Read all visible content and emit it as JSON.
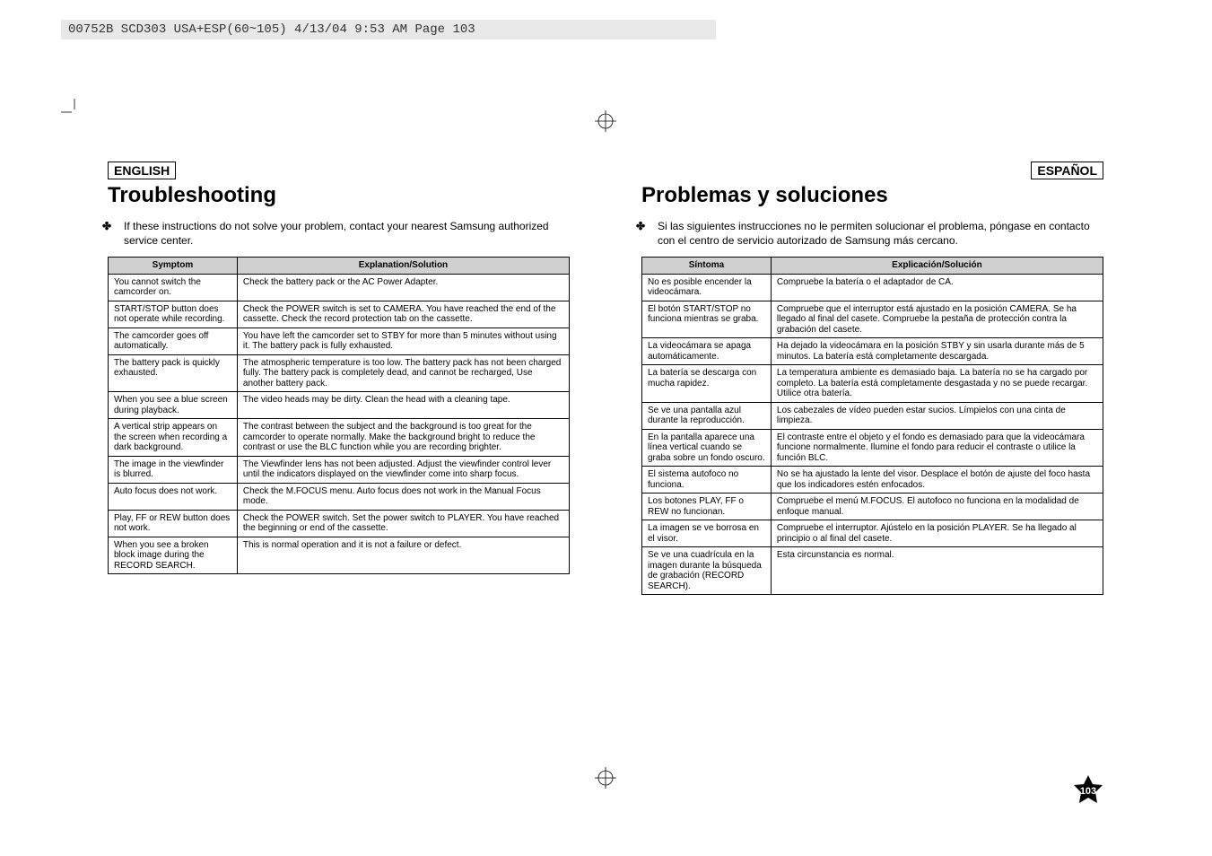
{
  "header": {
    "file_info": "00752B SCD303 USA+ESP(60~105)  4/13/04 9:53 AM  Page 103"
  },
  "left": {
    "lang": "ENGLISH",
    "title": "Troubleshooting",
    "intro_bullet": "✤",
    "intro": "If these instructions do not solve your problem, contact your nearest Samsung authorized service center.",
    "col1": "Symptom",
    "col2": "Explanation/Solution",
    "rows": [
      {
        "s": "You cannot switch the camcorder on.",
        "e": "Check the battery pack or the AC Power Adapter."
      },
      {
        "s": "START/STOP button does not operate while recording.",
        "e": "Check the POWER switch is set to CAMERA. You have reached the end of the cassette. Check the record protection tab on the cassette."
      },
      {
        "s": "The camcorder goes off automatically.",
        "e": "You have left the camcorder set to STBY for more than 5 minutes without using it. The battery pack is fully exhausted."
      },
      {
        "s": "The battery pack is quickly exhausted.",
        "e": "The atmospheric temperature is too low. The battery pack has not been charged fully. The battery pack is completely dead, and cannot be recharged, Use another battery pack."
      },
      {
        "s": "When you see a blue screen during playback.",
        "e": "The video heads may be dirty. Clean the head with a cleaning tape."
      },
      {
        "s": "A vertical strip appears on the screen when recording a dark background.",
        "e": "The contrast between the subject and the background is too great for the camcorder to operate normally. Make the background bright to reduce the contrast or use the BLC function while you are recording brighter."
      },
      {
        "s": "The image in the viewfinder is blurred.",
        "e": "The Viewfinder lens has not been adjusted. Adjust the viewfinder control lever until the indicators displayed on the viewfinder come into sharp focus."
      },
      {
        "s": "Auto focus does not work.",
        "e": "Check the M.FOCUS menu. Auto focus does not work in the Manual Focus mode."
      },
      {
        "s": "Play, FF or REW button does not work.",
        "e": "Check the POWER switch. Set the power switch to PLAYER. You have reached the beginning or end of the cassette."
      },
      {
        "s": "When you see a broken block image during the RECORD SEARCH.",
        "e": "This is normal operation and it is not a failure or defect."
      }
    ]
  },
  "right": {
    "lang": "ESPAÑOL",
    "title": "Problemas y soluciones",
    "intro_bullet": "✤",
    "intro": "Si las siguientes instrucciones no le permiten solucionar el problema, póngase en contacto con el centro de servicio autorizado de Samsung más cercano.",
    "col1": "Síntoma",
    "col2": "Explicación/Solución",
    "rows": [
      {
        "s": "No es posible encender la videocámara.",
        "e": "Compruebe la batería o el adaptador de CA."
      },
      {
        "s": "El botón START/STOP no funciona mientras se graba.",
        "e": "Compruebe que el interruptor está ajustado en la posición CAMERA. Se ha llegado al final del casete. Compruebe la pestaña de protección contra la grabación del casete."
      },
      {
        "s": "La videocámara se apaga automáticamente.",
        "e": "Ha dejado la videocámara en la posición STBY y sin usarla durante más de 5 minutos. La batería está completamente descargada."
      },
      {
        "s": "La batería se descarga con mucha rapidez.",
        "e": "La temperatura ambiente es demasiado baja. La batería no se ha cargado por completo. La batería está completamente desgastada y no se puede recargar. Utilice otra batería."
      },
      {
        "s": "Se ve una pantalla azul durante la reproducción.",
        "e": "Los cabezales de vídeo pueden estar sucios. Límpielos con una cinta de limpieza."
      },
      {
        "s": "En la pantalla aparece una línea vertical cuando se graba sobre un fondo oscuro.",
        "e": "El contraste entre el objeto y el fondo es demasiado para que la videocámara funcione normalmente. Ilumine el fondo para reducir el contraste o utilice la función BLC."
      },
      {
        "s": "El sistema autofoco no funciona.",
        "e": "No se ha ajustado la lente del visor. Desplace el botón de ajuste del foco hasta que los indicadores estén enfocados."
      },
      {
        "s": "Los botones PLAY, FF o REW no funcionan.",
        "e": "Compruebe el menú M.FOCUS. El autofoco no funciona en la modalidad de enfoque manual."
      },
      {
        "s": "La imagen se ve borrosa en el visor.",
        "e": "Compruebe el interruptor. Ajústelo en la posición PLAYER. Se ha llegado al principio o al final del casete."
      },
      {
        "s": "Se ve una cuadrícula en la imagen durante la búsqueda de grabación (RECORD SEARCH).",
        "e": "Esta circunstancia es normal."
      }
    ]
  },
  "page_number": "103"
}
